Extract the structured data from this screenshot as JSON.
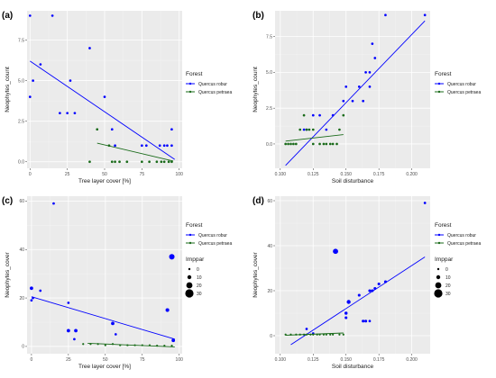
{
  "colors": {
    "panel_bg": "#ebebeb",
    "grid_major": "#ffffff",
    "robur": "#0000ff",
    "petraea": "#1a6b1a"
  },
  "legend": {
    "forest_title": "Forest",
    "size_title": "Imppar",
    "size_values": [
      0,
      10,
      20,
      30
    ]
  },
  "chart_data": [
    {
      "id": "a",
      "panel_label": "(a)",
      "type": "scatter",
      "xlabel": "Tree layer cover [%]",
      "ylabel": "Neophytes_count",
      "xlim": [
        -2,
        102
      ],
      "ylim": [
        -0.4,
        9.3
      ],
      "xticks": [
        0,
        25,
        50,
        75,
        100
      ],
      "xtick_labels": [
        "0",
        "25",
        "50",
        "75",
        "100"
      ],
      "yticks": [
        0,
        2.5,
        5,
        7.5
      ],
      "ytick_labels": [
        "0.0",
        "2.5",
        "5.0",
        "7.5"
      ],
      "grid": true,
      "size_legend": false,
      "series": [
        {
          "name": "Quercus robur",
          "color": "robur",
          "points": [
            [
              0,
              9
            ],
            [
              0,
              4
            ],
            [
              2,
              5
            ],
            [
              7,
              6
            ],
            [
              15,
              9
            ],
            [
              20,
              3
            ],
            [
              25,
              3
            ],
            [
              27,
              5
            ],
            [
              30,
              3
            ],
            [
              40,
              7
            ],
            [
              50,
              4
            ],
            [
              55,
              2
            ],
            [
              57,
              1
            ],
            [
              75,
              1
            ],
            [
              78,
              1
            ],
            [
              87,
              1
            ],
            [
              90,
              1
            ],
            [
              92,
              1
            ],
            [
              95,
              2
            ],
            [
              95,
              1
            ]
          ],
          "point_size": [
            6,
            6,
            6,
            6,
            6,
            6,
            6,
            6,
            6,
            6,
            6,
            6,
            6,
            6,
            6,
            6,
            6,
            6,
            6,
            6
          ],
          "fit": [
            [
              0,
              6.2
            ],
            [
              97,
              0.15
            ]
          ]
        },
        {
          "name": "Quercus petraea",
          "color": "petraea",
          "points": [
            [
              40,
              0
            ],
            [
              45,
              2
            ],
            [
              53,
              1
            ],
            [
              55,
              0
            ],
            [
              57,
              0
            ],
            [
              60,
              0
            ],
            [
              65,
              0
            ],
            [
              75,
              0
            ],
            [
              80,
              0
            ],
            [
              85,
              0
            ],
            [
              88,
              0
            ],
            [
              90,
              0
            ],
            [
              93,
              0
            ],
            [
              95,
              0
            ]
          ],
          "point_size": [
            6,
            6,
            6,
            6,
            6,
            6,
            6,
            6,
            6,
            6,
            6,
            6,
            6,
            6
          ],
          "fit": [
            [
              45,
              1.15
            ],
            [
              96,
              0.05
            ]
          ]
        }
      ]
    },
    {
      "id": "b",
      "panel_label": "(b)",
      "type": "scatter",
      "xlabel": "Soil disturbance",
      "ylabel": "Neophytes_count",
      "xlim": [
        0.096,
        0.214
      ],
      "ylim": [
        -1.7,
        9.3
      ],
      "xticks": [
        0.1,
        0.125,
        0.15,
        0.175,
        0.2
      ],
      "xtick_labels": [
        "0.100",
        "0.125",
        "0.150",
        "0.175",
        "0.200"
      ],
      "yticks": [
        0,
        2.5,
        5,
        7.5
      ],
      "ytick_labels": [
        "0.0",
        "2.5",
        "5.0",
        "7.5"
      ],
      "grid": true,
      "size_legend": false,
      "series": [
        {
          "name": "Quercus robur",
          "color": "robur",
          "points": [
            [
              0.118,
              1
            ],
            [
              0.12,
              1
            ],
            [
              0.125,
              2
            ],
            [
              0.13,
              2
            ],
            [
              0.135,
              1
            ],
            [
              0.14,
              2
            ],
            [
              0.148,
              3
            ],
            [
              0.15,
              4
            ],
            [
              0.155,
              3
            ],
            [
              0.16,
              4
            ],
            [
              0.163,
              3
            ],
            [
              0.165,
              5
            ],
            [
              0.168,
              5
            ],
            [
              0.17,
              7
            ],
            [
              0.172,
              6
            ],
            [
              0.18,
              9
            ],
            [
              0.21,
              9
            ],
            [
              0.168,
              4
            ]
          ],
          "point_size": [
            6,
            6,
            6,
            6,
            6,
            6,
            6,
            6,
            6,
            6,
            6,
            6,
            6,
            6,
            6,
            6,
            6,
            6
          ],
          "fit": [
            [
              0.104,
              -1.5
            ],
            [
              0.21,
              8.6
            ]
          ]
        },
        {
          "name": "Quercus petraea",
          "color": "petraea",
          "points": [
            [
              0.104,
              0
            ],
            [
              0.106,
              0
            ],
            [
              0.108,
              0
            ],
            [
              0.11,
              0
            ],
            [
              0.112,
              0
            ],
            [
              0.115,
              1
            ],
            [
              0.118,
              2
            ],
            [
              0.12,
              1
            ],
            [
              0.122,
              1
            ],
            [
              0.125,
              0
            ],
            [
              0.125,
              1
            ],
            [
              0.13,
              0
            ],
            [
              0.133,
              0
            ],
            [
              0.135,
              0
            ],
            [
              0.138,
              0
            ],
            [
              0.14,
              0
            ],
            [
              0.143,
              0
            ],
            [
              0.145,
              1
            ],
            [
              0.148,
              2
            ]
          ],
          "point_size": [
            6,
            6,
            6,
            6,
            6,
            6,
            6,
            6,
            6,
            6,
            6,
            6,
            6,
            6,
            6,
            6,
            6,
            6,
            6
          ],
          "fit": [
            [
              0.104,
              0.2
            ],
            [
              0.148,
              0.65
            ]
          ]
        }
      ]
    },
    {
      "id": "c",
      "panel_label": "(c)",
      "type": "scatter",
      "xlabel": "Tree layer cover [%]",
      "ylabel": "Neophytes_cover",
      "xlim": [
        -3,
        102
      ],
      "ylim": [
        -3,
        62
      ],
      "xticks": [
        0,
        25,
        50,
        75,
        100
      ],
      "xtick_labels": [
        "0",
        "25",
        "50",
        "75",
        "100"
      ],
      "yticks": [
        0,
        20,
        40,
        60
      ],
      "ytick_labels": [
        "0",
        "20",
        "40",
        "60"
      ],
      "grid": true,
      "size_legend": true,
      "series": [
        {
          "name": "Quercus robur",
          "color": "robur",
          "points": [
            [
              0,
              24
            ],
            [
              1,
              20
            ],
            [
              0,
              19
            ],
            [
              6,
              23
            ],
            [
              15,
              59
            ],
            [
              25,
              18
            ],
            [
              25,
              6.5
            ],
            [
              30,
              6.5
            ],
            [
              29,
              3
            ],
            [
              55,
              9.5
            ],
            [
              57,
              5
            ],
            [
              92,
              15
            ],
            [
              95,
              37
            ],
            [
              96,
              2.5
            ]
          ],
          "point_size": [
            12,
            6,
            6,
            6,
            6,
            6,
            12,
            12,
            6,
            12,
            6,
            14,
            30,
            12
          ],
          "fit": [
            [
              0,
              20.5
            ],
            [
              97,
              3
            ]
          ]
        },
        {
          "name": "Quercus petraea",
          "color": "petraea",
          "points": [
            [
              40,
              1
            ],
            [
              45,
              1
            ],
            [
              50,
              0.5
            ],
            [
              55,
              1
            ],
            [
              60,
              0.5
            ],
            [
              65,
              0.5
            ],
            [
              70,
              0.5
            ],
            [
              75,
              0.5
            ],
            [
              80,
              0.5
            ],
            [
              85,
              0.3
            ],
            [
              90,
              0.3
            ],
            [
              95,
              0.3
            ],
            [
              35,
              1
            ]
          ],
          "point_size": [
            4,
            4,
            4,
            4,
            4,
            4,
            4,
            4,
            4,
            4,
            4,
            4,
            4
          ],
          "fit": [
            [
              38,
              1.3
            ],
            [
              97,
              -0.2
            ]
          ]
        }
      ]
    },
    {
      "id": "d",
      "panel_label": "(d)",
      "type": "scatter",
      "xlabel": "Soil disturbance",
      "ylabel": "Neophytes_cover",
      "xlim": [
        0.096,
        0.214
      ],
      "ylim": [
        -8,
        62
      ],
      "xticks": [
        0.1,
        0.125,
        0.15,
        0.175,
        0.2
      ],
      "xtick_labels": [
        "0.100",
        "0.125",
        "0.150",
        "0.175",
        "0.200"
      ],
      "yticks": [
        0,
        20,
        40,
        60
      ],
      "ytick_labels": [
        "0",
        "20",
        "40",
        "60"
      ],
      "grid": true,
      "size_legend": true,
      "series": [
        {
          "name": "Quercus robur",
          "color": "robur",
          "points": [
            [
              0.142,
              37.5
            ],
            [
              0.152,
              15
            ],
            [
              0.15,
              10
            ],
            [
              0.15,
              8
            ],
            [
              0.16,
              18
            ],
            [
              0.163,
              6.5
            ],
            [
              0.165,
              6.5
            ],
            [
              0.168,
              20
            ],
            [
              0.17,
              20
            ],
            [
              0.172,
              21
            ],
            [
              0.175,
              23
            ],
            [
              0.18,
              24
            ],
            [
              0.168,
              6.5
            ],
            [
              0.21,
              59
            ],
            [
              0.12,
              3
            ],
            [
              0.125,
              1
            ]
          ],
          "point_size": [
            28,
            16,
            10,
            8,
            8,
            8,
            8,
            8,
            8,
            8,
            8,
            8,
            6,
            6,
            6,
            6
          ],
          "fit": [
            [
              0.108,
              -4
            ],
            [
              0.21,
              35
            ]
          ]
        },
        {
          "name": "Quercus petraea",
          "color": "petraea",
          "points": [
            [
              0.104,
              0.5
            ],
            [
              0.108,
              0.5
            ],
            [
              0.112,
              0.5
            ],
            [
              0.115,
              0.5
            ],
            [
              0.118,
              0.5
            ],
            [
              0.12,
              0.5
            ],
            [
              0.123,
              0.5
            ],
            [
              0.125,
              0.5
            ],
            [
              0.128,
              0.5
            ],
            [
              0.13,
              0.5
            ],
            [
              0.133,
              0.5
            ],
            [
              0.135,
              0.5
            ],
            [
              0.138,
              0.5
            ],
            [
              0.14,
              0.5
            ],
            [
              0.145,
              0.5
            ],
            [
              0.148,
              0.5
            ]
          ],
          "point_size": [
            4,
            4,
            4,
            4,
            4,
            4,
            4,
            4,
            4,
            4,
            4,
            4,
            4,
            4,
            4,
            4
          ],
          "fit": [
            [
              0.104,
              0.2
            ],
            [
              0.148,
              1.2
            ]
          ]
        }
      ]
    }
  ]
}
